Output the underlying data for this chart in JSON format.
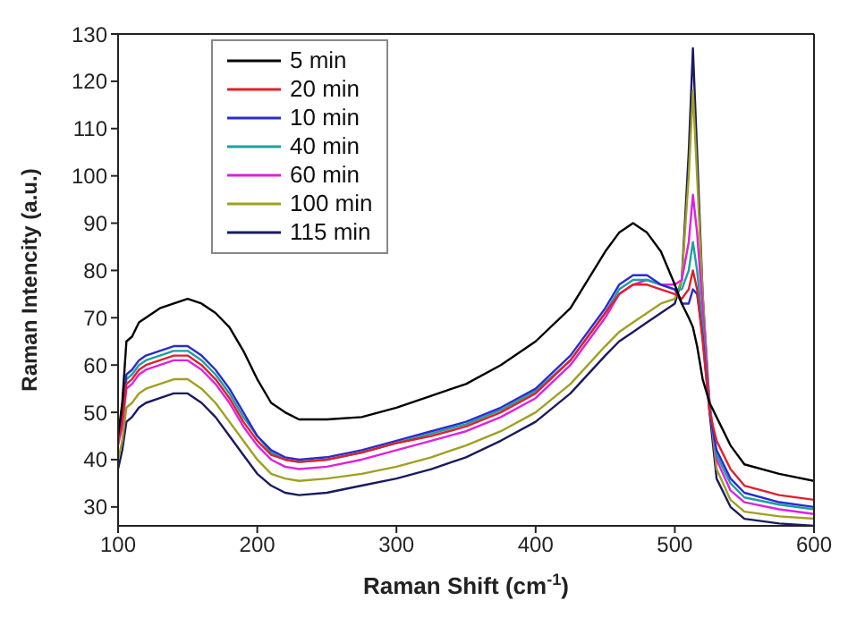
{
  "chart_data": {
    "type": "line",
    "xlabel": "Raman Shift (cm$^{-1}$)",
    "ylabel": "Raman Intencity (a.u.)",
    "x": [
      100,
      103,
      106,
      110,
      115,
      120,
      130,
      140,
      150,
      160,
      170,
      180,
      190,
      200,
      210,
      220,
      230,
      250,
      275,
      300,
      325,
      350,
      375,
      400,
      425,
      450,
      460,
      470,
      480,
      490,
      500,
      505,
      510,
      513,
      516,
      520,
      525,
      530,
      540,
      550,
      575,
      600
    ],
    "series": [
      {
        "name": "5 min",
        "color": "#000000",
        "values": [
          45,
          52,
          65,
          66,
          69,
          70,
          72,
          73,
          74,
          73,
          71,
          68,
          63,
          57,
          52,
          50,
          48.5,
          48.5,
          49,
          51,
          53.5,
          56,
          60,
          65,
          72,
          84,
          88,
          90,
          88,
          84,
          77,
          73,
          70,
          68,
          64,
          57,
          52,
          49,
          43,
          39,
          37,
          35.5
        ]
      },
      {
        "name": "20 min",
        "color": "#e0202a",
        "values": [
          44,
          48,
          56,
          57,
          59,
          60,
          61,
          62,
          62,
          60,
          57,
          53,
          48,
          44,
          41,
          40,
          39.5,
          40,
          41.5,
          43.5,
          45,
          47,
          50,
          54,
          61,
          71,
          75,
          77,
          77,
          76,
          75,
          74,
          76,
          80,
          76,
          65,
          50,
          44,
          38,
          34.5,
          32.5,
          31.5
        ]
      },
      {
        "name": "10 min",
        "color": "#2b2bd0",
        "values": [
          45,
          50,
          58,
          59,
          61,
          62,
          63,
          64,
          64,
          62,
          59,
          55,
          50,
          45,
          42,
          40.5,
          40,
          40.5,
          42,
          44,
          46,
          48,
          51,
          55,
          62,
          72,
          77,
          79,
          79,
          77,
          76,
          73,
          73,
          76,
          75,
          66,
          50,
          42,
          36,
          33,
          31,
          30
        ]
      },
      {
        "name": "40 min",
        "color": "#1aa0a0",
        "values": [
          44,
          49,
          57,
          58,
          60,
          61,
          62,
          63,
          63,
          61,
          58,
          54,
          49,
          45,
          41.5,
          40,
          39.5,
          40,
          41.5,
          43.5,
          45.5,
          47.5,
          50.5,
          54.5,
          61,
          71,
          76,
          78,
          78,
          77,
          76,
          76,
          80,
          86,
          80,
          68,
          51,
          41,
          35,
          32,
          30.5,
          29.5
        ]
      },
      {
        "name": "60 min",
        "color": "#e020e0",
        "values": [
          43,
          47,
          55,
          56,
          58,
          59,
          60,
          61,
          61,
          59,
          56,
          52,
          47,
          43,
          40,
          38.5,
          38,
          38.5,
          40,
          42,
          44,
          46,
          49,
          53,
          60,
          70,
          75,
          77,
          78,
          77,
          77,
          78,
          86,
          96,
          88,
          72,
          52,
          40,
          33.5,
          31,
          29.5,
          28.5
        ]
      },
      {
        "name": "100 min",
        "color": "#a0a020",
        "values": [
          40,
          44,
          51,
          52,
          54,
          55,
          56,
          57,
          57,
          55,
          52,
          48,
          44,
          40,
          37,
          36,
          35.5,
          36,
          37,
          38.5,
          40.5,
          43,
          46,
          50,
          56,
          64,
          67,
          69,
          71,
          73,
          74,
          78,
          100,
          118,
          100,
          75,
          52,
          38,
          31.5,
          29,
          28,
          27.5
        ]
      },
      {
        "name": "115 min",
        "color": "#1a1a60",
        "values": [
          38,
          42,
          48,
          49,
          51,
          52,
          53,
          54,
          54,
          52,
          49,
          45,
          41,
          37,
          34.5,
          33,
          32.5,
          33,
          34.5,
          36,
          38,
          40.5,
          44,
          48,
          54,
          62,
          65,
          67,
          69,
          71,
          73,
          78,
          105,
          127,
          105,
          75,
          50,
          36,
          30,
          27.5,
          26.5,
          26
        ]
      }
    ],
    "xlim": [
      100,
      600
    ],
    "xticks": [
      100,
      200,
      300,
      400,
      500,
      600
    ],
    "ylim": [
      26,
      130
    ],
    "yticks": [
      30,
      40,
      50,
      60,
      70,
      80,
      90,
      100,
      110,
      120,
      130
    ],
    "legend": "top left",
    "grid": false,
    "marker": "none",
    "line_style": "solid"
  }
}
